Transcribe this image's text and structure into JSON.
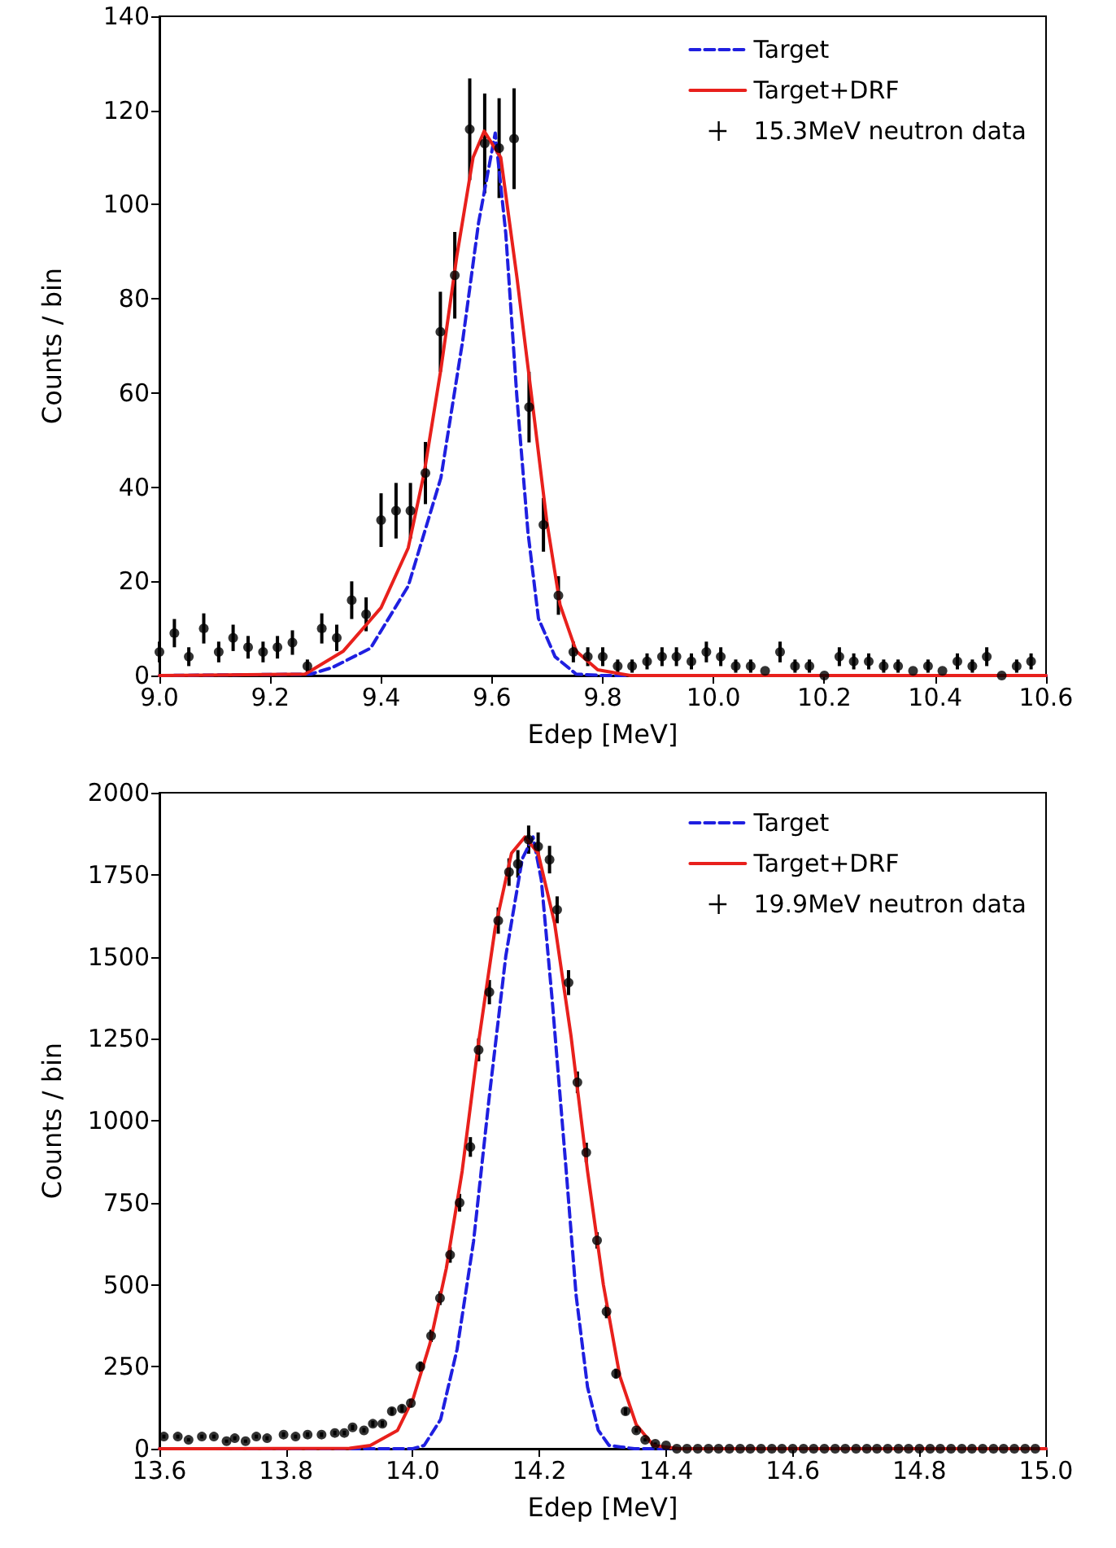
{
  "chart_data": [
    {
      "type": "line",
      "xlabel": "Edep [MeV]",
      "ylabel": "Counts / bin",
      "xlim": [
        9.0,
        10.6
      ],
      "ylim": [
        0,
        140
      ],
      "xticks": [
        {
          "value": 9.0,
          "label": "9.0"
        },
        {
          "value": 9.2,
          "label": "9.2"
        },
        {
          "value": 9.4,
          "label": "9.4"
        },
        {
          "value": 9.6,
          "label": "9.6"
        },
        {
          "value": 9.8,
          "label": "9.8"
        },
        {
          "value": 10.0,
          "label": "10.0"
        },
        {
          "value": 10.2,
          "label": "10.2"
        },
        {
          "value": 10.4,
          "label": "10.4"
        },
        {
          "value": 10.6,
          "label": "10.6"
        }
      ],
      "yticks": [
        0,
        20,
        40,
        60,
        80,
        100,
        120,
        140
      ],
      "grid": false,
      "legend": "top right",
      "series": [
        {
          "name": "Target",
          "color": "#1f1fe0",
          "line_style": "dashed",
          "marker": "none",
          "x": [
            9.0,
            9.273,
            9.312,
            9.381,
            9.449,
            9.508,
            9.547,
            9.576,
            9.606,
            9.625,
            9.645,
            9.665,
            9.684,
            9.714,
            9.752,
            9.8,
            10.6
          ],
          "values": [
            0,
            0.3,
            1.7,
            5.8,
            19,
            42,
            70.9,
            96.2,
            115.2,
            93.9,
            59.3,
            30.5,
            12.1,
            4,
            0.3,
            0,
            0
          ]
        },
        {
          "name": "Target+DRF",
          "color": "#e8201c",
          "line_style": "solid",
          "marker": "none",
          "x": [
            9.0,
            9.263,
            9.332,
            9.4,
            9.449,
            9.478,
            9.508,
            9.537,
            9.566,
            9.586,
            9.616,
            9.645,
            9.674,
            9.699,
            9.723,
            9.752,
            9.791,
            9.85,
            10.6
          ],
          "values": [
            0,
            0.3,
            5.2,
            14.4,
            27.1,
            43.2,
            65.1,
            89.3,
            110,
            115.6,
            110,
            84.7,
            57,
            32.8,
            15,
            5.2,
            1.2,
            0,
            0
          ]
        },
        {
          "name": "15.3MeV neutron data",
          "type": "scatter",
          "color": "#000000",
          "marker": "circle",
          "x": [
            9.0,
            9.027,
            9.053,
            9.08,
            9.107,
            9.133,
            9.16,
            9.187,
            9.213,
            9.24,
            9.267,
            9.293,
            9.32,
            9.347,
            9.373,
            9.4,
            9.427,
            9.453,
            9.48,
            9.507,
            9.533,
            9.56,
            9.587,
            9.613,
            9.64,
            9.667,
            9.693,
            9.72,
            9.747,
            9.773,
            9.8,
            9.827,
            9.853,
            9.88,
            9.907,
            9.933,
            9.96,
            9.987,
            10.013,
            10.04,
            10.067,
            10.093,
            10.12,
            10.147,
            10.173,
            10.2,
            10.227,
            10.253,
            10.28,
            10.307,
            10.333,
            10.36,
            10.387,
            10.413,
            10.44,
            10.467,
            10.493,
            10.52,
            10.547,
            10.573
          ],
          "values": [
            5,
            9,
            4,
            10,
            5,
            8,
            6,
            5,
            6,
            7,
            2,
            10,
            8,
            16,
            13,
            33,
            35,
            35,
            43,
            73,
            85,
            116,
            113,
            112,
            114,
            57,
            32,
            17,
            5,
            4,
            4,
            2,
            2,
            3,
            4,
            4,
            3,
            5,
            4,
            2,
            2,
            1,
            5,
            2,
            2,
            0,
            4,
            3,
            3,
            2,
            2,
            1,
            2,
            1,
            3,
            2,
            4,
            0,
            2,
            3
          ],
          "errors": [
            2.2,
            3,
            2,
            3.2,
            2.2,
            2.8,
            2.4,
            2.2,
            2.4,
            2.6,
            1.4,
            3.2,
            2.8,
            4,
            3.6,
            5.7,
            5.9,
            5.9,
            6.6,
            8.5,
            9.2,
            10.8,
            10.6,
            10.6,
            10.7,
            7.5,
            5.7,
            4.1,
            2.2,
            2,
            2,
            1.4,
            1.4,
            1.7,
            2,
            2,
            1.7,
            2.2,
            2,
            1.4,
            1.4,
            null,
            2.2,
            1.4,
            1.4,
            null,
            2,
            1.7,
            1.7,
            1.4,
            1.4,
            null,
            1.4,
            null,
            1.7,
            1.4,
            2,
            null,
            1.4,
            1.7
          ]
        }
      ]
    },
    {
      "type": "line",
      "xlabel": "Edep [MeV]",
      "ylabel": "Counts / bin",
      "xlim": [
        13.6,
        15.0
      ],
      "ylim": [
        0,
        2000
      ],
      "xticks": [
        {
          "value": 13.6,
          "label": "13.6"
        },
        {
          "value": 13.8,
          "label": "13.8"
        },
        {
          "value": 14.0,
          "label": "14.0"
        },
        {
          "value": 14.2,
          "label": "14.2"
        },
        {
          "value": 14.4,
          "label": "14.4"
        },
        {
          "value": 14.6,
          "label": "14.6"
        },
        {
          "value": 14.8,
          "label": "14.8"
        },
        {
          "value": 15.0,
          "label": "15.0"
        }
      ],
      "yticks": [
        0,
        250,
        500,
        750,
        1000,
        1250,
        1500,
        1750,
        2000
      ],
      "grid": false,
      "legend": "top right",
      "series": [
        {
          "name": "Target",
          "color": "#1f1fe0",
          "line_style": "dashed",
          "marker": "none",
          "x": [
            13.6,
            14.0,
            14.018,
            14.044,
            14.07,
            14.096,
            14.121,
            14.147,
            14.173,
            14.19,
            14.203,
            14.22,
            14.241,
            14.258,
            14.276,
            14.293,
            14.31,
            14.35,
            15.0
          ],
          "values": [
            0,
            0,
            10,
            89,
            303,
            632,
            1076,
            1503,
            1799,
            1865,
            1734,
            1372,
            879,
            467,
            188,
            56,
            10,
            0,
            0
          ]
        },
        {
          "name": "Target+DRF",
          "color": "#e8201c",
          "line_style": "solid",
          "marker": "none",
          "x": [
            13.6,
            13.9,
            13.933,
            13.976,
            14.001,
            14.027,
            14.053,
            14.078,
            14.104,
            14.13,
            14.156,
            14.177,
            14.198,
            14.224,
            14.25,
            14.276,
            14.301,
            14.327,
            14.353,
            14.38,
            14.42,
            15.0
          ],
          "values": [
            0,
            1,
            10,
            56,
            155,
            319,
            550,
            846,
            1240,
            1586,
            1816,
            1865,
            1816,
            1602,
            1257,
            846,
            500,
            221,
            73,
            10,
            0,
            0
          ]
        },
        {
          "name": "19.9MeV neutron data",
          "type": "scatter",
          "color": "#000000",
          "marker": "circle",
          "x": [
            13.607,
            13.629,
            13.646,
            13.667,
            13.686,
            13.706,
            13.719,
            13.736,
            13.753,
            13.77,
            13.796,
            13.815,
            13.834,
            13.856,
            13.877,
            13.892,
            13.905,
            13.923,
            13.937,
            13.952,
            13.967,
            13.983,
            13.997,
            14.012,
            14.029,
            14.043,
            14.059,
            14.074,
            14.091,
            14.104,
            14.121,
            14.135,
            14.152,
            14.166,
            14.183,
            14.198,
            14.216,
            14.228,
            14.246,
            14.26,
            14.274,
            14.291,
            14.306,
            14.321,
            14.336,
            14.353,
            14.367,
            14.383,
            14.4,
            14.417,
            14.433,
            14.45,
            14.467,
            14.483,
            14.5,
            14.517,
            14.533,
            14.55,
            14.567,
            14.583,
            14.6,
            14.617,
            14.633,
            14.65,
            14.667,
            14.683,
            14.7,
            14.717,
            14.733,
            14.75,
            14.767,
            14.783,
            14.8,
            14.817,
            14.833,
            14.85,
            14.867,
            14.883,
            14.9,
            14.917,
            14.933,
            14.95,
            14.967,
            14.983
          ],
          "values": [
            37,
            37,
            27,
            37,
            37,
            23,
            32,
            23,
            37,
            32,
            43,
            37,
            43,
            43,
            48,
            48,
            65,
            56,
            76,
            76,
            114,
            122,
            139,
            250,
            344,
            459,
            591,
            750,
            920,
            1216,
            1392,
            1610,
            1758,
            1783,
            1857,
            1836,
            1796,
            1643,
            1421,
            1117,
            903,
            635,
            418,
            229,
            114,
            56,
            27,
            15,
            10,
            0,
            0,
            0,
            0,
            0,
            0,
            0,
            0,
            0,
            0,
            0,
            0,
            0,
            0,
            0,
            0,
            0,
            0,
            0,
            0,
            0,
            0,
            0,
            0,
            0,
            0,
            0,
            0,
            0,
            0,
            0,
            0,
            0,
            0,
            0
          ],
          "errors": [
            6,
            6,
            5,
            6,
            6,
            5,
            6,
            5,
            6,
            6,
            7,
            6,
            7,
            7,
            7,
            7,
            8,
            7,
            9,
            9,
            11,
            11,
            12,
            16,
            19,
            21,
            24,
            27,
            30,
            35,
            37,
            40,
            42,
            42,
            43,
            43,
            42,
            41,
            38,
            33,
            30,
            25,
            20,
            15,
            11,
            7,
            5,
            4,
            null,
            null,
            null,
            null,
            null,
            null,
            null,
            null,
            null,
            null,
            null,
            null,
            null,
            null,
            null,
            null,
            null,
            null,
            null,
            null,
            null,
            null,
            null,
            null,
            null,
            null,
            null,
            null,
            null,
            null,
            null,
            null,
            null,
            null,
            null,
            null
          ]
        }
      ]
    }
  ]
}
